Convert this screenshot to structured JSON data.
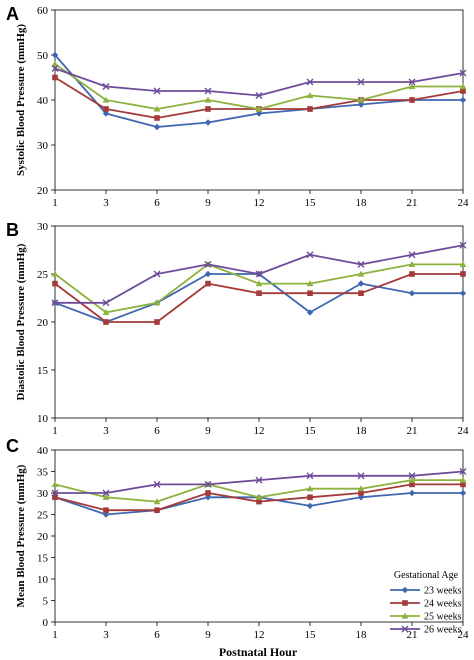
{
  "chart_data": [
    {
      "type": "line",
      "panel": "A",
      "ylabel": "Systolic Blood Pressure (mmHg)",
      "xlabel": "",
      "ylim": [
        20,
        60
      ],
      "yticks": [
        20,
        30,
        40,
        50,
        60
      ],
      "categories": [
        "1",
        "3",
        "6",
        "9",
        "12",
        "15",
        "18",
        "21",
        "24"
      ],
      "series": [
        {
          "name": "23 weeks",
          "color": "#3f67b0",
          "marker": "diamond",
          "values": [
            50,
            37,
            34,
            35,
            37,
            38,
            39,
            40,
            40
          ]
        },
        {
          "name": "24 weeks",
          "color": "#a53a3a",
          "marker": "square",
          "values": [
            45,
            38,
            36,
            38,
            38,
            38,
            40,
            40,
            42
          ]
        },
        {
          "name": "25 weeks",
          "color": "#8db23f",
          "marker": "triangle",
          "values": [
            48,
            40,
            38,
            40,
            38,
            41,
            40,
            43,
            43
          ]
        },
        {
          "name": "26 weeks",
          "color": "#6e4c9a",
          "marker": "x",
          "values": [
            47,
            43,
            42,
            42,
            41,
            44,
            44,
            44,
            46
          ]
        }
      ]
    },
    {
      "type": "line",
      "panel": "B",
      "ylabel": "Diastolic Blood Pressure (mmHg)",
      "xlabel": "",
      "ylim": [
        10,
        30
      ],
      "yticks": [
        10,
        15,
        20,
        25,
        30
      ],
      "categories": [
        "1",
        "3",
        "6",
        "9",
        "12",
        "15",
        "18",
        "21",
        "24"
      ],
      "series": [
        {
          "name": "23 weeks",
          "color": "#3f67b0",
          "marker": "diamond",
          "values": [
            22,
            20,
            22,
            25,
            25,
            21,
            24,
            23,
            23
          ]
        },
        {
          "name": "24 weeks",
          "color": "#a53a3a",
          "marker": "square",
          "values": [
            24,
            20,
            20,
            24,
            23,
            23,
            23,
            25,
            25
          ]
        },
        {
          "name": "25 weeks",
          "color": "#8db23f",
          "marker": "triangle",
          "values": [
            25,
            21,
            22,
            26,
            24,
            24,
            25,
            26,
            26
          ]
        },
        {
          "name": "26 weeks",
          "color": "#6e4c9a",
          "marker": "x",
          "values": [
            22,
            22,
            25,
            26,
            25,
            27,
            26,
            27,
            28
          ]
        }
      ]
    },
    {
      "type": "line",
      "panel": "C",
      "ylabel": "Mean Blood Pressure (mmHg)",
      "xlabel": "Postnatal Hour",
      "ylim": [
        0,
        40
      ],
      "yticks": [
        0,
        5,
        10,
        15,
        20,
        25,
        30,
        35,
        40
      ],
      "categories": [
        "1",
        "3",
        "6",
        "9",
        "12",
        "15",
        "18",
        "21",
        "24"
      ],
      "legend": {
        "title": "Gestational Age",
        "placement": "bottom-right"
      },
      "series": [
        {
          "name": "23 weeks",
          "color": "#3f67b0",
          "marker": "diamond",
          "values": [
            29,
            25,
            26,
            29,
            29,
            27,
            29,
            30,
            30
          ]
        },
        {
          "name": "24 weeks",
          "color": "#a53a3a",
          "marker": "square",
          "values": [
            29,
            26,
            26,
            30,
            28,
            29,
            30,
            32,
            32
          ]
        },
        {
          "name": "25 weeks",
          "color": "#8db23f",
          "marker": "triangle",
          "values": [
            32,
            29,
            28,
            32,
            29,
            31,
            31,
            33,
            33
          ]
        },
        {
          "name": "26 weeks",
          "color": "#6e4c9a",
          "marker": "x",
          "values": [
            30,
            30,
            32,
            32,
            33,
            34,
            34,
            34,
            35
          ]
        }
      ]
    }
  ]
}
